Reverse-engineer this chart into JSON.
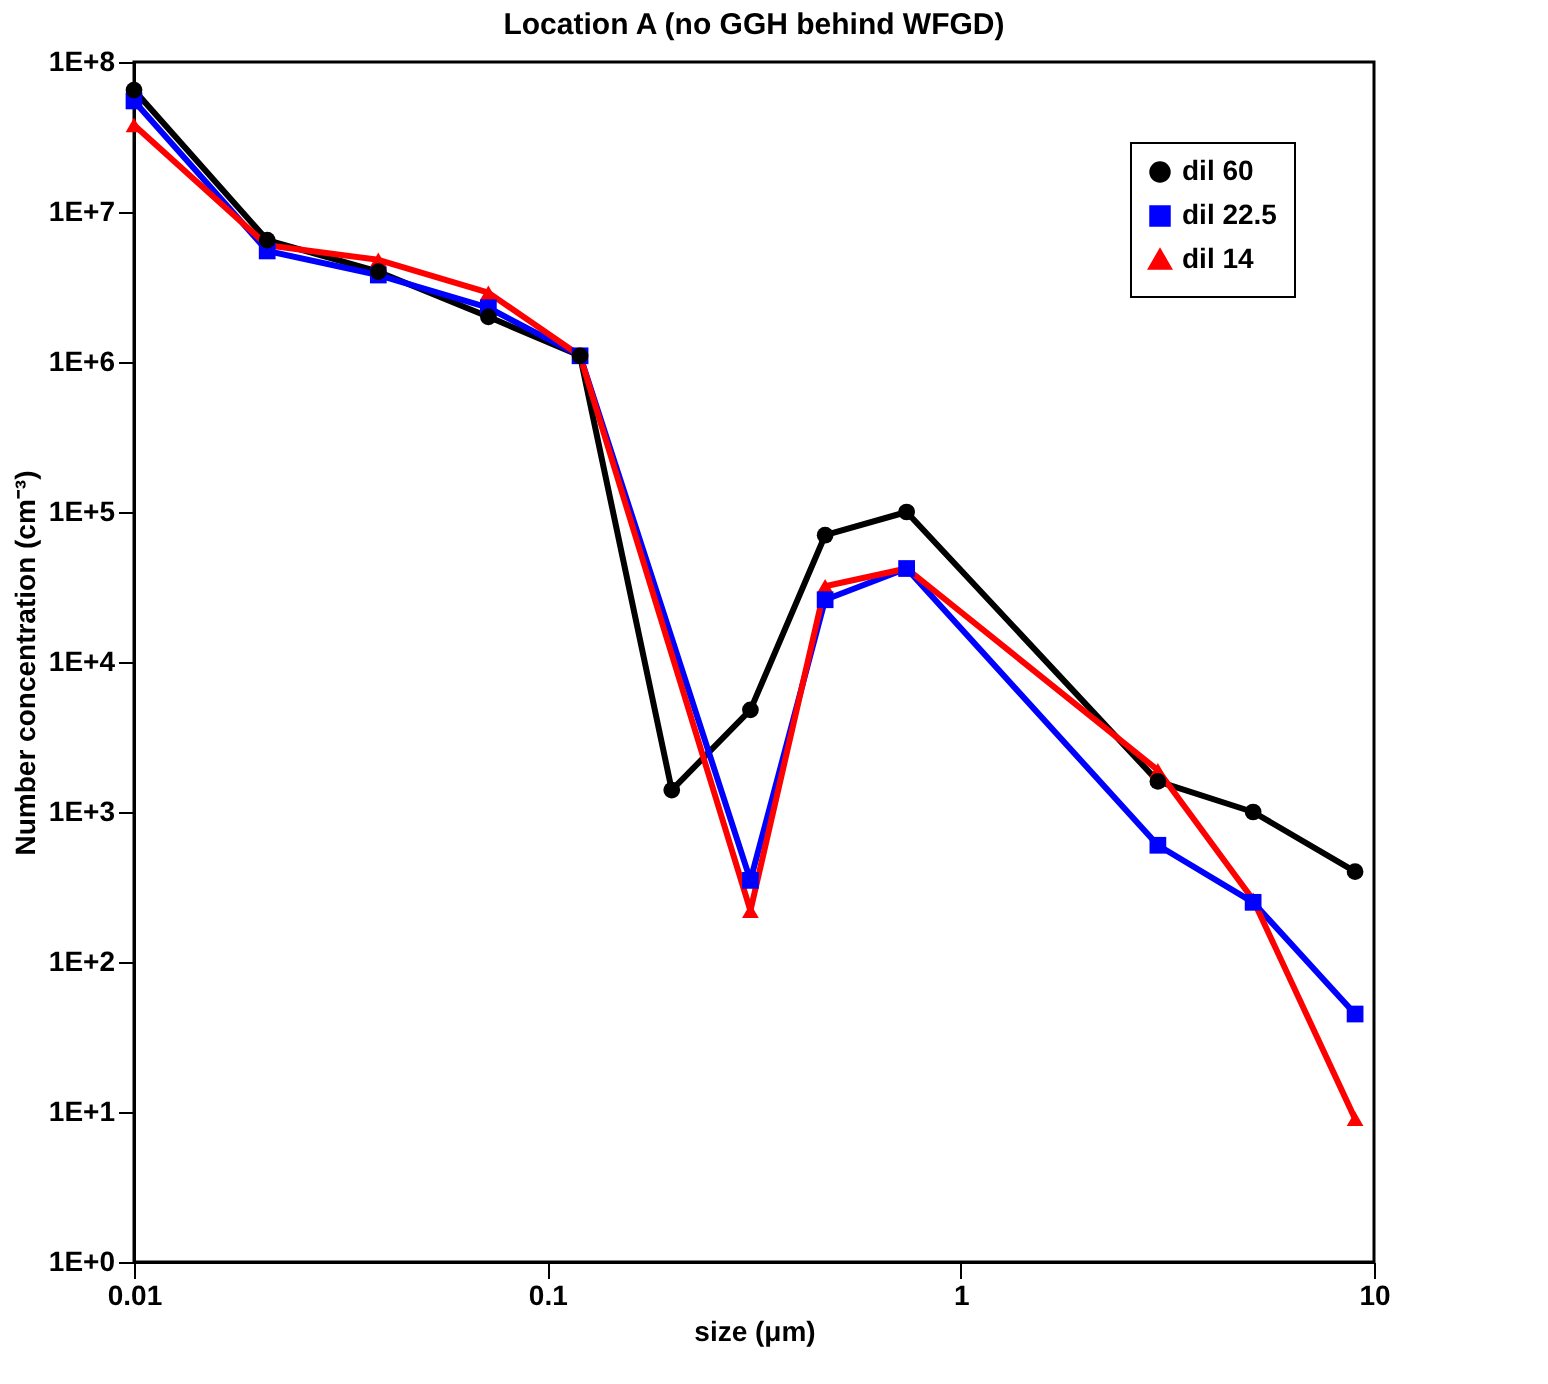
{
  "chart_data": {
    "type": "line",
    "title": "Location A (no GGH behind WFGD)",
    "xlabel": "size (μm)",
    "ylabel": "Number concentration (cm⁻³)",
    "log": "xy",
    "grid": false,
    "legend": "top right",
    "line_style": "solid",
    "xlim": [
      0.01,
      10
    ],
    "xticks": [
      0.01,
      0.1,
      1,
      10
    ],
    "ylim": [
      1,
      100000000
    ],
    "yticks": [
      {
        "value": 1,
        "label": "1E+0"
      },
      {
        "value": 10,
        "label": "1E+1"
      },
      {
        "value": 100,
        "label": "1E+2"
      },
      {
        "value": 1000,
        "label": "1E+3"
      },
      {
        "value": 10000,
        "label": "1E+4"
      },
      {
        "value": 100000,
        "label": "1E+5"
      },
      {
        "value": 1000000,
        "label": "1E+6"
      },
      {
        "value": 10000000,
        "label": "1E+7"
      },
      {
        "value": 100000000,
        "label": "1E+8"
      }
    ],
    "series": [
      {
        "name": "dil 60",
        "color": "#000000",
        "marker": "circle",
        "x": [
          0.01,
          0.021,
          0.039,
          0.072,
          0.12,
          0.2,
          0.31,
          0.47,
          0.74,
          3.0,
          5.1,
          9.0
        ],
        "values": [
          65000000,
          6500000,
          4000000,
          2000000,
          1100000,
          1400,
          4800,
          70000,
          100000,
          1600,
          1000,
          400
        ]
      },
      {
        "name": "dil 22.5",
        "color": "#0000ff",
        "marker": "square",
        "x": [
          0.01,
          0.021,
          0.039,
          0.072,
          0.12,
          0.31,
          0.47,
          0.74,
          3.0,
          5.1,
          9.0
        ],
        "values": [
          55000000,
          5500000,
          3800000,
          2300000,
          1100000,
          350,
          26000,
          42000,
          600,
          250,
          45
        ]
      },
      {
        "name": "dil 14",
        "color": "#ff0000",
        "marker": "triangle",
        "x": [
          0.01,
          0.021,
          0.039,
          0.072,
          0.12,
          0.31,
          0.47,
          0.74,
          3.0,
          5.1,
          9.0
        ],
        "values": [
          38000000,
          6000000,
          4800000,
          2900000,
          1100000,
          220,
          32000,
          42000,
          1900,
          260,
          9
        ]
      }
    ]
  }
}
